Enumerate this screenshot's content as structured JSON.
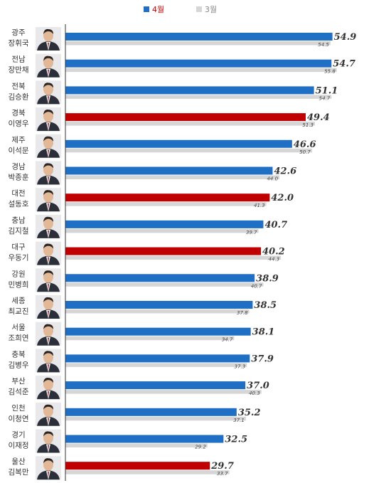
{
  "chart_data": {
    "type": "bar",
    "orientation": "horizontal",
    "title": "",
    "xlabel": "",
    "ylabel": "",
    "xlim": [
      0,
      57
    ],
    "grid": false,
    "legend": "top-center",
    "colors": {
      "current": "#1F6FC5",
      "highlight": "#C00000",
      "previous": "#D6D6D6",
      "axis": "#333333"
    },
    "series": [
      {
        "key": "current",
        "name": "4월"
      },
      {
        "key": "previous",
        "name": "3월"
      }
    ],
    "rows": [
      {
        "region": "광주",
        "name": "장휘국",
        "current": 54.9,
        "previous": 54.5,
        "highlight": false
      },
      {
        "region": "전남",
        "name": "장만채",
        "current": 54.7,
        "previous": 55.8,
        "highlight": false
      },
      {
        "region": "전북",
        "name": "김승환",
        "current": 51.1,
        "previous": 54.7,
        "highlight": false
      },
      {
        "region": "경북",
        "name": "이영우",
        "current": 49.4,
        "previous": 51.3,
        "highlight": true
      },
      {
        "region": "제주",
        "name": "이석문",
        "current": 46.6,
        "previous": 50.7,
        "highlight": false
      },
      {
        "region": "경남",
        "name": "박종훈",
        "current": 42.6,
        "previous": 44.0,
        "highlight": false
      },
      {
        "region": "대전",
        "name": "설동호",
        "current": 42.0,
        "previous": 41.3,
        "highlight": true
      },
      {
        "region": "충남",
        "name": "김지철",
        "current": 40.7,
        "previous": 39.7,
        "highlight": false
      },
      {
        "region": "대구",
        "name": "우동기",
        "current": 40.2,
        "previous": 44.3,
        "highlight": true
      },
      {
        "region": "강원",
        "name": "민병희",
        "current": 38.9,
        "previous": 40.7,
        "highlight": false
      },
      {
        "region": "세종",
        "name": "최교진",
        "current": 38.5,
        "previous": 37.8,
        "highlight": false
      },
      {
        "region": "서울",
        "name": "조희연",
        "current": 38.1,
        "previous": 34.7,
        "highlight": false
      },
      {
        "region": "충북",
        "name": "김병우",
        "current": 37.9,
        "previous": 37.3,
        "highlight": false
      },
      {
        "region": "부산",
        "name": "김석준",
        "current": 37.0,
        "previous": 40.3,
        "highlight": false
      },
      {
        "region": "인천",
        "name": "이청연",
        "current": 35.2,
        "previous": 37.1,
        "highlight": false
      },
      {
        "region": "경기",
        "name": "이재정",
        "current": 32.5,
        "previous": 29.2,
        "highlight": false
      },
      {
        "region": "울산",
        "name": "김복만",
        "current": 29.7,
        "previous": 33.7,
        "highlight": true
      }
    ]
  }
}
